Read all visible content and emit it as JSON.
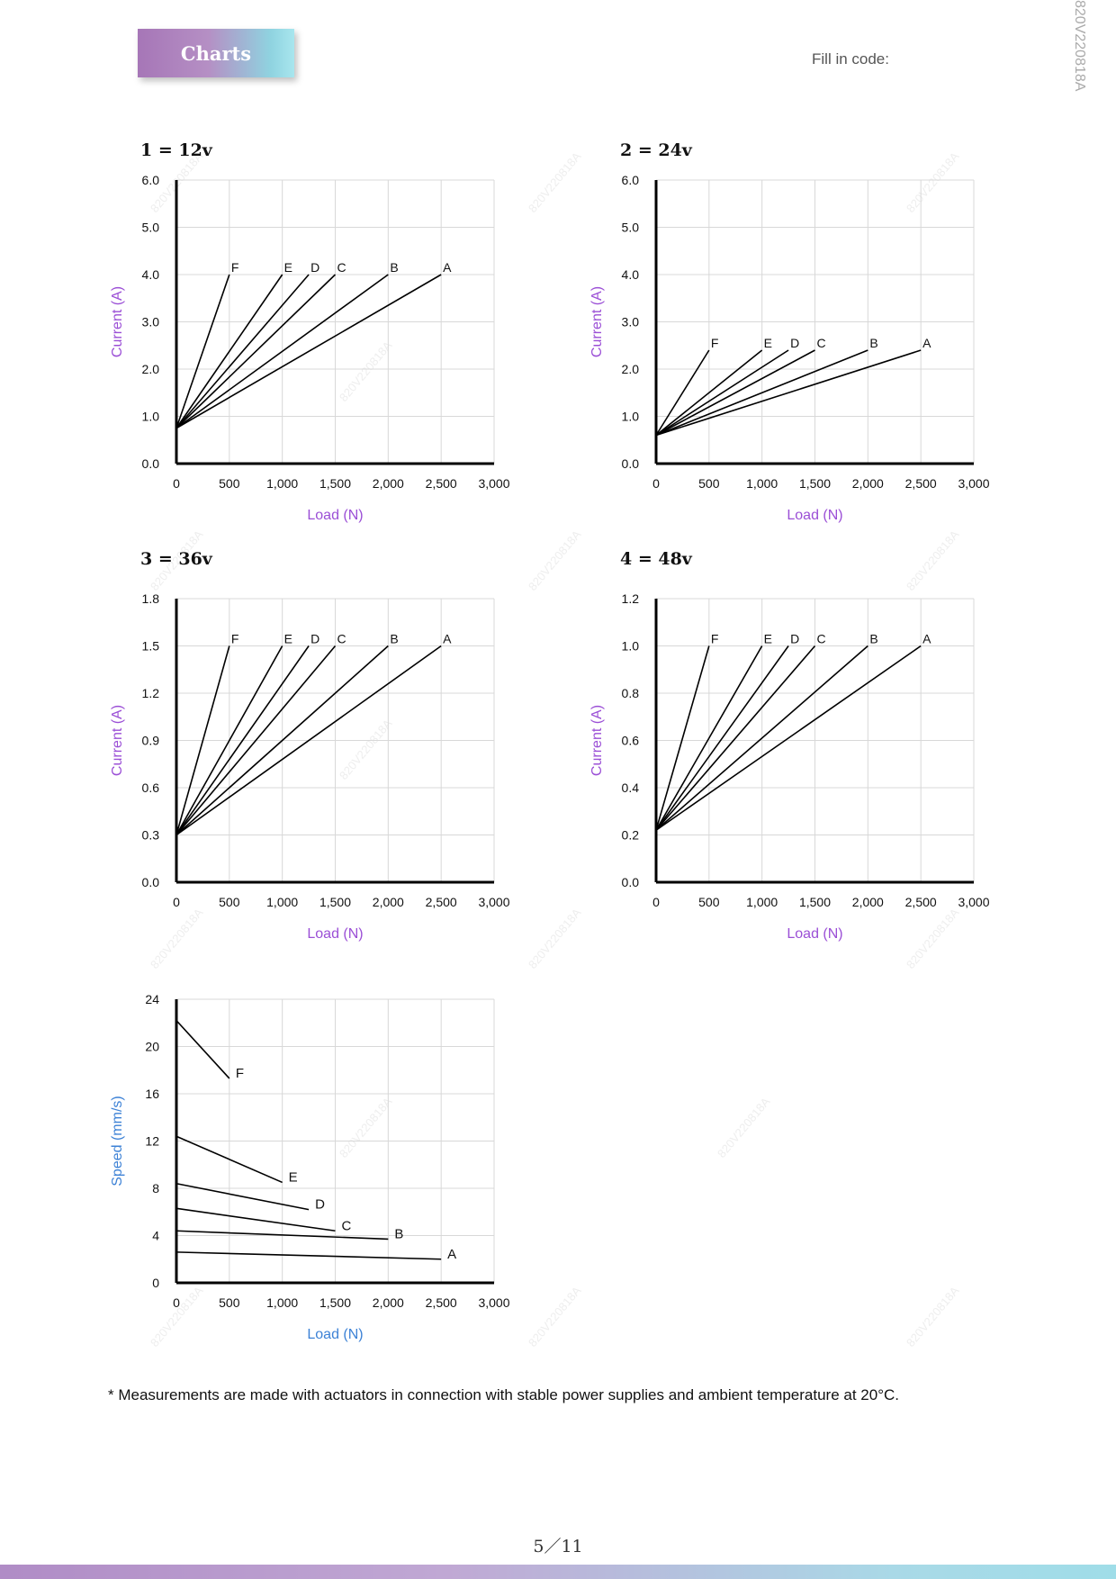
{
  "header": {
    "badge": "Charts",
    "fill_code": "Fill in code:",
    "side_code": "820V220818A"
  },
  "watermark": "820V220818A",
  "footnote": "* Measurements are made with actuators in connection with stable power supplies and ambient temperature at 20°C.",
  "page_number": "5／11",
  "colors": {
    "axis_label_current": "#9b4fd6",
    "axis_label_speed": "#3d82d6",
    "line": "#000000",
    "grid": "#d8d8d8"
  },
  "chart_data": [
    {
      "type": "line",
      "title": "1 = 12v",
      "xlabel": "Load (N)",
      "ylabel": "Current (A)",
      "xlim": [
        0,
        3000
      ],
      "ylim": [
        0,
        6
      ],
      "xticks": [
        0,
        500,
        1000,
        1500,
        2000,
        2500,
        3000
      ],
      "xtick_labels": [
        "0",
        "500",
        "1,000",
        "1,500",
        "2,000",
        "2,500",
        "3,000"
      ],
      "yticks": [
        0,
        1,
        2,
        3,
        4,
        5,
        6
      ],
      "ytick_labels": [
        "0.0",
        "1.0",
        "2.0",
        "3.0",
        "4.0",
        "5.0",
        "6.0"
      ],
      "grid": true,
      "series": [
        {
          "name": "A",
          "x": [
            0,
            2500
          ],
          "y": [
            0.75,
            4.0
          ]
        },
        {
          "name": "B",
          "x": [
            0,
            2000
          ],
          "y": [
            0.75,
            4.0
          ]
        },
        {
          "name": "C",
          "x": [
            0,
            1500
          ],
          "y": [
            0.75,
            4.0
          ]
        },
        {
          "name": "D",
          "x": [
            0,
            1250
          ],
          "y": [
            0.75,
            4.0
          ]
        },
        {
          "name": "E",
          "x": [
            0,
            1000
          ],
          "y": [
            0.75,
            4.0
          ]
        },
        {
          "name": "F",
          "x": [
            0,
            500
          ],
          "y": [
            0.75,
            4.0
          ]
        }
      ]
    },
    {
      "type": "line",
      "title": "2 = 24v",
      "xlabel": "Load (N)",
      "ylabel": "Current (A)",
      "xlim": [
        0,
        3000
      ],
      "ylim": [
        0,
        6
      ],
      "xticks": [
        0,
        500,
        1000,
        1500,
        2000,
        2500,
        3000
      ],
      "xtick_labels": [
        "0",
        "500",
        "1,000",
        "1,500",
        "2,000",
        "2,500",
        "3,000"
      ],
      "yticks": [
        0,
        1,
        2,
        3,
        4,
        5,
        6
      ],
      "ytick_labels": [
        "0.0",
        "1.0",
        "2.0",
        "3.0",
        "4.0",
        "5.0",
        "6.0"
      ],
      "grid": true,
      "series": [
        {
          "name": "A",
          "x": [
            0,
            2500
          ],
          "y": [
            0.6,
            2.4
          ]
        },
        {
          "name": "B",
          "x": [
            0,
            2000
          ],
          "y": [
            0.6,
            2.4
          ]
        },
        {
          "name": "C",
          "x": [
            0,
            1500
          ],
          "y": [
            0.6,
            2.4
          ]
        },
        {
          "name": "D",
          "x": [
            0,
            1250
          ],
          "y": [
            0.6,
            2.4
          ]
        },
        {
          "name": "E",
          "x": [
            0,
            1000
          ],
          "y": [
            0.6,
            2.4
          ]
        },
        {
          "name": "F",
          "x": [
            0,
            500
          ],
          "y": [
            0.6,
            2.4
          ]
        }
      ]
    },
    {
      "type": "line",
      "title": "3 = 36v",
      "xlabel": "Load (N)",
      "ylabel": "Current (A)",
      "xlim": [
        0,
        3000
      ],
      "ylim": [
        0,
        1.8
      ],
      "xticks": [
        0,
        500,
        1000,
        1500,
        2000,
        2500,
        3000
      ],
      "xtick_labels": [
        "0",
        "500",
        "1,000",
        "1,500",
        "2,000",
        "2,500",
        "3,000"
      ],
      "yticks": [
        0,
        0.3,
        0.6,
        0.9,
        1.2,
        1.5,
        1.8
      ],
      "ytick_labels": [
        "0.0",
        "0.3",
        "0.6",
        "0.9",
        "1.2",
        "1.5",
        "1.8"
      ],
      "grid": true,
      "series": [
        {
          "name": "A",
          "x": [
            0,
            2500
          ],
          "y": [
            0.3,
            1.5
          ]
        },
        {
          "name": "B",
          "x": [
            0,
            2000
          ],
          "y": [
            0.3,
            1.5
          ]
        },
        {
          "name": "C",
          "x": [
            0,
            1500
          ],
          "y": [
            0.3,
            1.5
          ]
        },
        {
          "name": "D",
          "x": [
            0,
            1250
          ],
          "y": [
            0.3,
            1.5
          ]
        },
        {
          "name": "E",
          "x": [
            0,
            1000
          ],
          "y": [
            0.3,
            1.5
          ]
        },
        {
          "name": "F",
          "x": [
            0,
            500
          ],
          "y": [
            0.3,
            1.5
          ]
        }
      ]
    },
    {
      "type": "line",
      "title": "4 = 48v",
      "xlabel": "Load (N)",
      "ylabel": "Current (A)",
      "xlim": [
        0,
        3000
      ],
      "ylim": [
        0,
        1.2
      ],
      "xticks": [
        0,
        500,
        1000,
        1500,
        2000,
        2500,
        3000
      ],
      "xtick_labels": [
        "0",
        "500",
        "1,000",
        "1,500",
        "2,000",
        "2,500",
        "3,000"
      ],
      "yticks": [
        0,
        0.2,
        0.4,
        0.6,
        0.8,
        1.0,
        1.2
      ],
      "ytick_labels": [
        "0.0",
        "0.2",
        "0.4",
        "0.6",
        "0.8",
        "1.0",
        "1.2"
      ],
      "grid": true,
      "series": [
        {
          "name": "A",
          "x": [
            0,
            2500
          ],
          "y": [
            0.22,
            1.0
          ]
        },
        {
          "name": "B",
          "x": [
            0,
            2000
          ],
          "y": [
            0.22,
            1.0
          ]
        },
        {
          "name": "C",
          "x": [
            0,
            1500
          ],
          "y": [
            0.22,
            1.0
          ]
        },
        {
          "name": "D",
          "x": [
            0,
            1250
          ],
          "y": [
            0.22,
            1.0
          ]
        },
        {
          "name": "E",
          "x": [
            0,
            1000
          ],
          "y": [
            0.22,
            1.0
          ]
        },
        {
          "name": "F",
          "x": [
            0,
            500
          ],
          "y": [
            0.22,
            1.0
          ]
        }
      ]
    },
    {
      "type": "line",
      "title": "",
      "xlabel": "Load (N)",
      "ylabel": "Speed (mm/s)",
      "xlim": [
        0,
        3000
      ],
      "ylim": [
        0,
        24
      ],
      "xticks": [
        0,
        500,
        1000,
        1500,
        2000,
        2500,
        3000
      ],
      "xtick_labels": [
        "0",
        "500",
        "1,000",
        "1,500",
        "2,000",
        "2,500",
        "3,000"
      ],
      "yticks": [
        0,
        4,
        8,
        12,
        16,
        20,
        24
      ],
      "ytick_labels": [
        "0",
        "4",
        "8",
        "12",
        "16",
        "20",
        "24"
      ],
      "grid": true,
      "series": [
        {
          "name": "A",
          "x": [
            0,
            2500
          ],
          "y": [
            2.6,
            2.0
          ]
        },
        {
          "name": "B",
          "x": [
            0,
            2000
          ],
          "y": [
            4.4,
            3.7
          ]
        },
        {
          "name": "C",
          "x": [
            0,
            1500
          ],
          "y": [
            6.3,
            4.4
          ]
        },
        {
          "name": "D",
          "x": [
            0,
            1250
          ],
          "y": [
            8.4,
            6.2
          ]
        },
        {
          "name": "E",
          "x": [
            0,
            1000
          ],
          "y": [
            12.4,
            8.5
          ]
        },
        {
          "name": "F",
          "x": [
            0,
            500
          ],
          "y": [
            22.2,
            17.3
          ]
        }
      ]
    }
  ]
}
